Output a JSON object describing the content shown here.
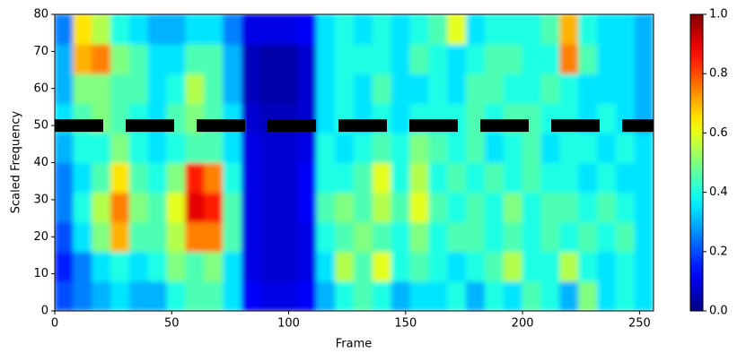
{
  "chart_data": {
    "type": "heatmap",
    "colormap": "jet",
    "xlabel": "Frame",
    "ylabel": "Scaled Frequency",
    "xlim": [
      0,
      256
    ],
    "ylim": [
      0,
      80
    ],
    "xticks": [
      0,
      50,
      100,
      150,
      200,
      250
    ],
    "yticks": [
      0,
      10,
      20,
      30,
      40,
      50,
      60,
      70,
      80
    ],
    "z": [
      [
        0.2,
        0.25,
        0.3,
        0.35,
        0.3,
        0.3,
        0.4,
        0.45,
        0.45,
        0.35,
        0.12,
        0.1,
        0.1,
        0.12,
        0.3,
        0.4,
        0.45,
        0.4,
        0.3,
        0.35,
        0.35,
        0.4,
        0.3,
        0.4,
        0.35,
        0.45,
        0.4,
        0.3,
        0.5,
        0.35,
        0.4,
        0.35
      ],
      [
        0.15,
        0.25,
        0.35,
        0.4,
        0.35,
        0.4,
        0.5,
        0.45,
        0.5,
        0.35,
        0.1,
        0.08,
        0.08,
        0.1,
        0.35,
        0.55,
        0.45,
        0.6,
        0.4,
        0.45,
        0.4,
        0.35,
        0.4,
        0.45,
        0.55,
        0.4,
        0.4,
        0.55,
        0.4,
        0.35,
        0.4,
        0.35
      ],
      [
        0.2,
        0.35,
        0.5,
        0.7,
        0.45,
        0.45,
        0.55,
        0.75,
        0.75,
        0.45,
        0.1,
        0.08,
        0.08,
        0.1,
        0.4,
        0.45,
        0.5,
        0.45,
        0.4,
        0.5,
        0.4,
        0.45,
        0.45,
        0.4,
        0.45,
        0.4,
        0.45,
        0.4,
        0.45,
        0.4,
        0.45,
        0.35
      ],
      [
        0.25,
        0.4,
        0.55,
        0.75,
        0.5,
        0.45,
        0.6,
        0.9,
        0.85,
        0.45,
        0.1,
        0.08,
        0.08,
        0.12,
        0.45,
        0.5,
        0.45,
        0.55,
        0.45,
        0.6,
        0.45,
        0.4,
        0.45,
        0.4,
        0.5,
        0.4,
        0.45,
        0.45,
        0.4,
        0.45,
        0.4,
        0.35
      ],
      [
        0.25,
        0.35,
        0.45,
        0.65,
        0.45,
        0.4,
        0.5,
        0.85,
        0.75,
        0.4,
        0.1,
        0.08,
        0.08,
        0.12,
        0.4,
        0.4,
        0.45,
        0.6,
        0.4,
        0.55,
        0.4,
        0.45,
        0.4,
        0.45,
        0.4,
        0.45,
        0.4,
        0.4,
        0.35,
        0.4,
        0.35,
        0.35
      ],
      [
        0.3,
        0.4,
        0.4,
        0.5,
        0.4,
        0.35,
        0.4,
        0.45,
        0.45,
        0.35,
        0.1,
        0.08,
        0.08,
        0.1,
        0.4,
        0.35,
        0.4,
        0.45,
        0.4,
        0.5,
        0.45,
        0.4,
        0.45,
        0.35,
        0.4,
        0.45,
        0.35,
        0.4,
        0.4,
        0.35,
        0.4,
        0.35
      ],
      [
        0.35,
        0.45,
        0.5,
        0.45,
        0.4,
        0.35,
        0.45,
        0.5,
        0.45,
        0.35,
        0.08,
        0.06,
        0.06,
        0.08,
        0.35,
        0.4,
        0.35,
        0.4,
        0.35,
        0.4,
        0.4,
        0.4,
        0.45,
        0.4,
        0.45,
        0.45,
        0.4,
        0.4,
        0.35,
        0.4,
        0.35,
        0.3
      ],
      [
        0.3,
        0.5,
        0.5,
        0.45,
        0.45,
        0.35,
        0.4,
        0.55,
        0.45,
        0.3,
        0.06,
        0.04,
        0.04,
        0.08,
        0.35,
        0.4,
        0.35,
        0.45,
        0.35,
        0.35,
        0.4,
        0.35,
        0.45,
        0.45,
        0.4,
        0.4,
        0.45,
        0.4,
        0.35,
        0.35,
        0.35,
        0.3
      ],
      [
        0.3,
        0.7,
        0.75,
        0.5,
        0.45,
        0.35,
        0.35,
        0.45,
        0.45,
        0.3,
        0.06,
        0.04,
        0.04,
        0.08,
        0.35,
        0.4,
        0.4,
        0.4,
        0.35,
        0.45,
        0.4,
        0.35,
        0.4,
        0.45,
        0.45,
        0.4,
        0.4,
        0.75,
        0.45,
        0.35,
        0.35,
        0.3
      ],
      [
        0.25,
        0.65,
        0.55,
        0.4,
        0.35,
        0.3,
        0.3,
        0.35,
        0.35,
        0.25,
        0.1,
        0.1,
        0.1,
        0.12,
        0.35,
        0.4,
        0.35,
        0.4,
        0.35,
        0.4,
        0.45,
        0.6,
        0.35,
        0.4,
        0.4,
        0.4,
        0.45,
        0.7,
        0.4,
        0.35,
        0.35,
        0.3
      ]
    ],
    "hline": {
      "y": 50,
      "color": "#000000"
    },
    "colorbar": {
      "lim": [
        0,
        1
      ],
      "ticks": [
        {
          "value": 0,
          "label": "0.0"
        },
        {
          "value": 0.2,
          "label": "0.2"
        },
        {
          "value": 0.4,
          "label": "0.4"
        },
        {
          "value": 0.6,
          "label": "0.6"
        },
        {
          "value": 0.8,
          "label": "0.8"
        },
        {
          "value": 1,
          "label": "1.0"
        }
      ]
    }
  }
}
